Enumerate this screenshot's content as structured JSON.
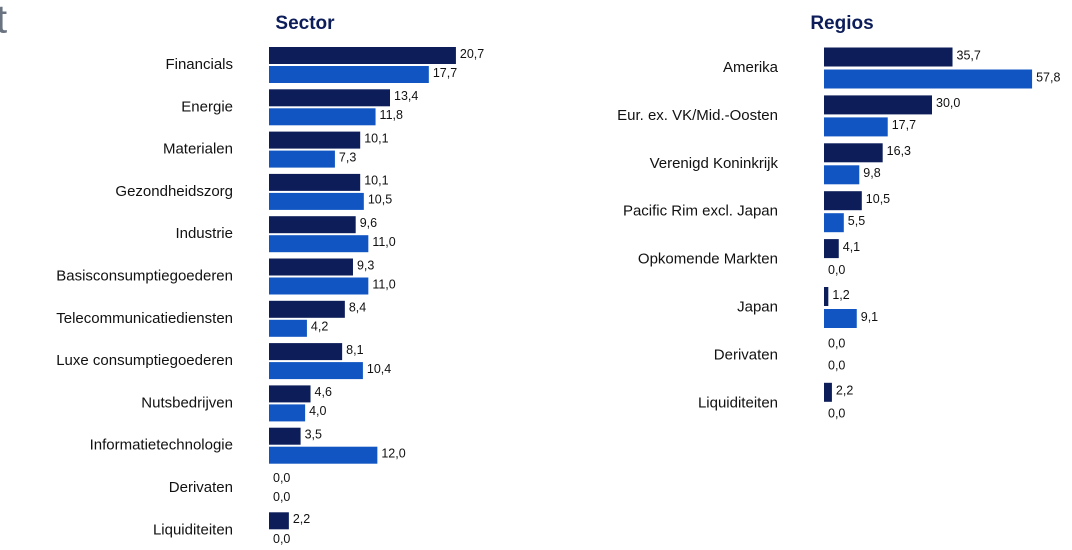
{
  "title_fragment": "t",
  "chart_data": [
    {
      "type": "bar",
      "orientation": "horizontal",
      "title": "Sector",
      "categories": [
        "Financials",
        "Energie",
        "Materialen",
        "Gezondheidszorg",
        "Industrie",
        "Basisconsumptiegoederen",
        "Telecommunicatiediensten",
        "Luxe consumptiegoederen",
        "Nutsbedrijven",
        "Informatietechnologie",
        "Derivaten",
        "Liquiditeiten"
      ],
      "series": [
        {
          "color": "#0c1d5a",
          "values": [
            20.7,
            13.4,
            10.1,
            10.1,
            9.6,
            9.3,
            8.4,
            8.1,
            4.6,
            3.5,
            0.0,
            2.2
          ],
          "value_labels": [
            "20,7",
            "13,4",
            "10,1",
            "10,1",
            "9,6",
            "9,3",
            "8,4",
            "8,1",
            "4,6",
            "3,5",
            "0,0",
            "2,2"
          ]
        },
        {
          "color": "#1155c2",
          "values": [
            17.7,
            11.8,
            7.3,
            10.5,
            11.0,
            11.0,
            4.2,
            10.4,
            4.0,
            12.0,
            0.0,
            0.0
          ],
          "value_labels": [
            "17,7",
            "11,8",
            "7,3",
            "10,5",
            "11,0",
            "11,0",
            "4,2",
            "10,4",
            "4,0",
            "12,0",
            "0,0",
            "0,0"
          ]
        }
      ]
    },
    {
      "type": "bar",
      "orientation": "horizontal",
      "title": "Regios",
      "categories": [
        "Amerika",
        "Eur. ex. VK/Mid.-Oosten",
        "Verenigd Koninkrijk",
        "Pacific Rim excl. Japan",
        "Opkomende Markten",
        "Japan",
        "Derivaten",
        "Liquiditeiten"
      ],
      "series": [
        {
          "color": "#0c1d5a",
          "values": [
            35.7,
            30.0,
            16.3,
            10.5,
            4.1,
            1.2,
            0.0,
            2.2
          ],
          "value_labels": [
            "35,7",
            "30,0",
            "16,3",
            "10,5",
            "4,1",
            "1,2",
            "0,0",
            "2,2"
          ]
        },
        {
          "color": "#1155c2",
          "values": [
            57.8,
            17.7,
            9.8,
            5.5,
            0.0,
            9.1,
            0.0,
            0.0
          ],
          "value_labels": [
            "57,8",
            "17,7",
            "9,8",
            "5,5",
            "0,0",
            "9,1",
            "0,0",
            "0,0"
          ]
        }
      ]
    }
  ]
}
